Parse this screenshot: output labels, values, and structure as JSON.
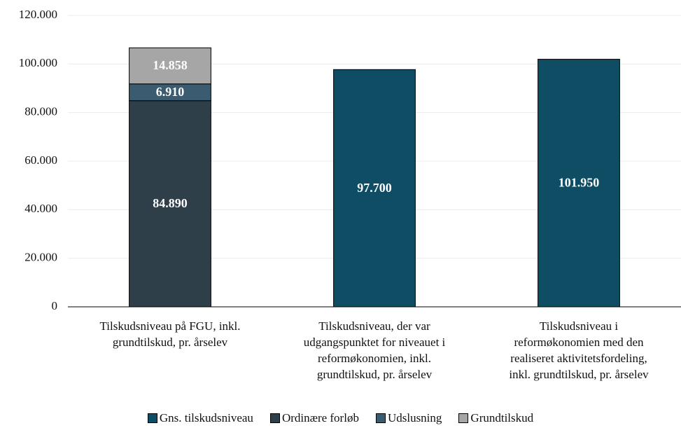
{
  "chart_data": {
    "type": "stacked_bar",
    "categories": [
      "Tilskudsniveau på FGU, inkl.\ngrundtilskud, pr. årselev",
      "Tilskudsniveau, der var\nudgangspunktet for niveauet i\nreformøkonomien, inkl.\ngrundtilskud, pr. årselev",
      "Tilskudsniveau i\nreformøkonomien med den\nrealiseret aktivitetsfordeling,\ninkl. grundtilskud, pr. årselev"
    ],
    "series": [
      {
        "name": "Gns. tilskudsniveau",
        "color": "#0e4d64",
        "values": [
          null,
          97700,
          101950
        ],
        "value_labels": [
          null,
          "97.700",
          "101.950"
        ]
      },
      {
        "name": "Ordinære forløb",
        "color": "#2e3f4a",
        "values": [
          84890,
          null,
          null
        ],
        "value_labels": [
          "84.890",
          null,
          null
        ]
      },
      {
        "name": "Udslusning",
        "color": "#3b5c70",
        "values": [
          6910,
          null,
          null
        ],
        "value_labels": [
          "6.910",
          null,
          null
        ]
      },
      {
        "name": "Grundtilskud",
        "color": "#a6a6a6",
        "values": [
          14858,
          null,
          null
        ],
        "value_labels": [
          "14.858",
          null,
          null
        ]
      }
    ],
    "ylim": [
      0,
      120000
    ],
    "yticks": [
      0,
      {
        "value": 20000,
        "label": "20.000"
      },
      {
        "value": 40000,
        "label": "40.000"
      },
      {
        "value": 60000,
        "label": "60.000"
      },
      {
        "value": 80000,
        "label": "80.000"
      },
      {
        "value": 100000,
        "label": "100.000"
      },
      {
        "value": 120000,
        "label": "120.000"
      }
    ],
    "grid": true,
    "legend": "bottom"
  }
}
